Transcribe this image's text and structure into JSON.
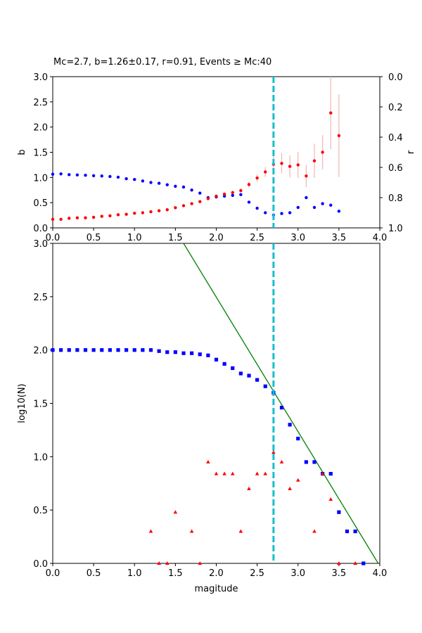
{
  "title": "Mc=2.7, b=1.26±0.17, r=0.91, Events ≥ Mc:40",
  "colors": {
    "b_value": "#ff0000",
    "r_value": "#0000ff",
    "cumulative": "#0000ff",
    "noncumulative": "#ff0000",
    "fit_line": "#008000",
    "mc_line": "#17becf",
    "errorbar": "#f4b4b4"
  },
  "chart_data": [
    {
      "type": "scatter",
      "name": "b-value and correlation vs magnitude",
      "xlim": [
        0,
        4
      ],
      "ylim": [
        0,
        3
      ],
      "y2lim": [
        1,
        0
      ],
      "ylabel": "b",
      "y2label": "r",
      "x_ticks": [
        "0.0",
        "0.5",
        "1.0",
        "1.5",
        "2.0",
        "2.5",
        "3.0",
        "3.5",
        "4.0"
      ],
      "y_ticks": [
        "0.0",
        "0.5",
        "1.0",
        "1.5",
        "2.0",
        "2.5",
        "3.0"
      ],
      "y2_ticks": [
        "0.0",
        "0.2",
        "0.4",
        "0.6",
        "0.8",
        "1.0"
      ],
      "mc_line_x": 2.7,
      "b_series": {
        "x": [
          0.0,
          0.1,
          0.2,
          0.3,
          0.4,
          0.5,
          0.6,
          0.7,
          0.8,
          0.9,
          1.0,
          1.1,
          1.2,
          1.3,
          1.4,
          1.5,
          1.6,
          1.7,
          1.8,
          1.9,
          2.0,
          2.1,
          2.2,
          2.3,
          2.4,
          2.5,
          2.6,
          2.7,
          2.8,
          2.9,
          3.0,
          3.1,
          3.2,
          3.3,
          3.4,
          3.5
        ],
        "y": [
          0.17,
          0.17,
          0.19,
          0.2,
          0.2,
          0.21,
          0.23,
          0.24,
          0.26,
          0.27,
          0.29,
          0.3,
          0.32,
          0.34,
          0.36,
          0.4,
          0.44,
          0.48,
          0.52,
          0.58,
          0.63,
          0.67,
          0.7,
          0.74,
          0.86,
          0.99,
          1.11,
          1.26,
          1.28,
          1.22,
          1.25,
          1.03,
          1.33,
          1.5,
          2.28,
          1.83
        ],
        "err": [
          0.01,
          0.01,
          0.01,
          0.01,
          0.01,
          0.01,
          0.01,
          0.01,
          0.01,
          0.01,
          0.01,
          0.01,
          0.01,
          0.01,
          0.01,
          0.02,
          0.02,
          0.02,
          0.02,
          0.03,
          0.03,
          0.03,
          0.04,
          0.04,
          0.06,
          0.08,
          0.1,
          0.17,
          0.2,
          0.22,
          0.26,
          0.22,
          0.34,
          0.34,
          0.72,
          0.82
        ]
      },
      "r_series": {
        "x": [
          0.0,
          0.1,
          0.2,
          0.3,
          0.4,
          0.5,
          0.6,
          0.7,
          0.8,
          0.9,
          1.0,
          1.1,
          1.2,
          1.3,
          1.4,
          1.5,
          1.6,
          1.7,
          1.8,
          1.9,
          2.0,
          2.1,
          2.2,
          2.3,
          2.4,
          2.5,
          2.6,
          2.7,
          2.8,
          2.9,
          3.0,
          3.1,
          3.2,
          3.3,
          3.4,
          3.5
        ],
        "y": [
          0.645,
          0.643,
          0.648,
          0.65,
          0.652,
          0.655,
          0.657,
          0.66,
          0.665,
          0.675,
          0.68,
          0.69,
          0.7,
          0.705,
          0.715,
          0.725,
          0.73,
          0.75,
          0.77,
          0.8,
          0.795,
          0.79,
          0.785,
          0.78,
          0.83,
          0.87,
          0.9,
          0.915,
          0.905,
          0.9,
          0.865,
          0.8,
          0.865,
          0.84,
          0.85,
          0.89
        ]
      }
    },
    {
      "type": "scatter",
      "name": "frequency-magnitude distribution",
      "xlim": [
        0,
        4
      ],
      "ylim": [
        0,
        3
      ],
      "xlabel": "magitude",
      "ylabel": "log10(N)",
      "x_ticks": [
        "0.0",
        "0.5",
        "1.0",
        "1.5",
        "2.0",
        "2.5",
        "3.0",
        "3.5",
        "4.0"
      ],
      "y_ticks": [
        "0.0",
        "0.5",
        "1.0",
        "1.5",
        "2.0",
        "2.5",
        "3.0"
      ],
      "mc_line_x": 2.7,
      "fit_line": {
        "x": [
          1.6,
          3.98
        ],
        "y": [
          3.0,
          0.0
        ]
      },
      "cumulative": {
        "x": [
          0.0,
          0.1,
          0.2,
          0.3,
          0.4,
          0.5,
          0.6,
          0.7,
          0.8,
          0.9,
          1.0,
          1.1,
          1.2,
          1.3,
          1.4,
          1.5,
          1.6,
          1.7,
          1.8,
          1.9,
          2.0,
          2.1,
          2.2,
          2.3,
          2.4,
          2.5,
          2.6,
          2.7,
          2.8,
          2.9,
          3.0,
          3.1,
          3.2,
          3.3,
          3.4,
          3.5,
          3.6,
          3.7,
          3.8
        ],
        "y": [
          2.0,
          2.0,
          2.0,
          2.0,
          2.0,
          2.0,
          2.0,
          2.0,
          2.0,
          2.0,
          2.0,
          2.0,
          2.0,
          1.99,
          1.98,
          1.98,
          1.97,
          1.97,
          1.96,
          1.95,
          1.91,
          1.87,
          1.83,
          1.78,
          1.76,
          1.72,
          1.66,
          1.6,
          1.46,
          1.3,
          1.17,
          0.95,
          0.95,
          0.84,
          0.84,
          0.48,
          0.3,
          0.3,
          0.0
        ]
      },
      "noncumulative": {
        "x": [
          1.2,
          1.3,
          1.4,
          1.5,
          1.7,
          1.8,
          1.9,
          2.0,
          2.1,
          2.2,
          2.3,
          2.4,
          2.5,
          2.6,
          2.7,
          2.8,
          2.9,
          3.0,
          3.2,
          3.3,
          3.4,
          3.5,
          3.7
        ],
        "y": [
          0.3,
          0.0,
          0.0,
          0.48,
          0.3,
          0.0,
          0.95,
          0.84,
          0.84,
          0.84,
          0.3,
          0.7,
          0.84,
          0.84,
          1.04,
          0.95,
          0.7,
          0.78,
          0.3,
          0.84,
          0.6,
          0.0,
          0.0
        ]
      }
    }
  ]
}
